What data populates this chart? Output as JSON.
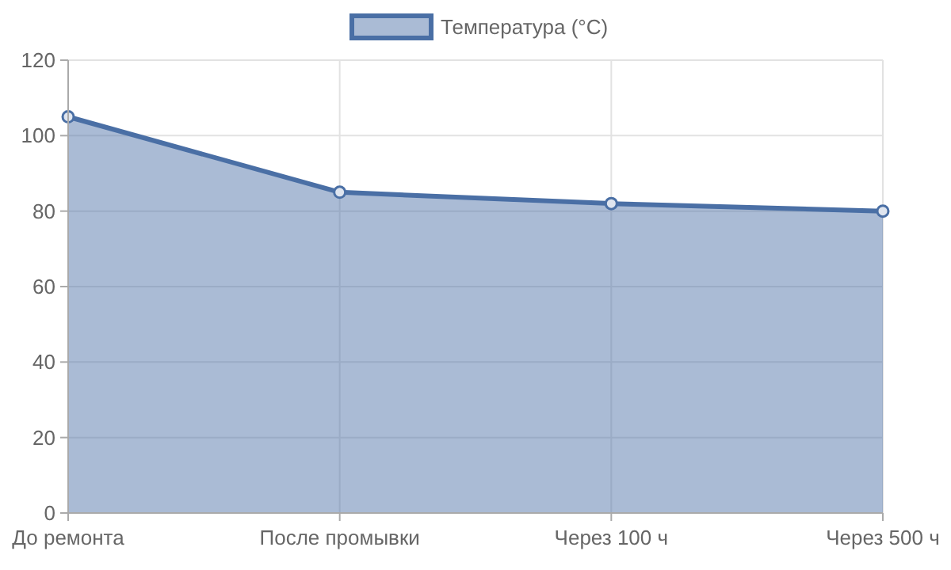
{
  "chart_data": {
    "type": "area",
    "categories": [
      "До ремонта",
      "После промывки",
      "Через 100 ч",
      "Через 500 ч"
    ],
    "series": [
      {
        "name": "Температура (°C)",
        "color": "#4a6fa5",
        "values": [
          105,
          85,
          82,
          80
        ]
      }
    ],
    "ylim": [
      0,
      120
    ],
    "yticks": [
      0,
      20,
      40,
      60,
      80,
      100,
      120
    ],
    "grid": true,
    "legend": "top",
    "marker": "circle"
  }
}
